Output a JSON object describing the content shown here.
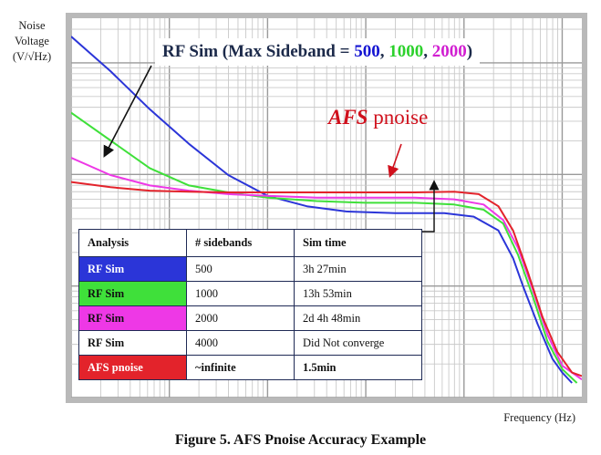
{
  "y_axis_lines": [
    "Noise",
    "Voltage",
    "(V/√Hz)"
  ],
  "x_axis_label": "Frequency (Hz)",
  "caption": "Figure 5. AFS Pnoise Accuracy Example",
  "title": {
    "prefix": "RF Sim (Max Sideband = ",
    "v1": "500",
    "sep1": ", ",
    "v2": "1000",
    "sep2": ", ",
    "v3": "2000",
    "suffix": ")"
  },
  "afs_label": {
    "italic": "AFS",
    "rest": " pnoise"
  },
  "colors": {
    "blue": "#2b35d8",
    "green": "#3fe03a",
    "magenta": "#ee38e6",
    "red": "#e3232b",
    "title_blue": "#1414d2",
    "title_green": "#2cd12c",
    "title_magenta": "#d11fd1"
  },
  "table": {
    "headers": [
      "Analysis",
      "# sidebands",
      "Sim time"
    ],
    "rows": [
      {
        "analysis": "RF Sim",
        "sidebands": "500",
        "time": "3h 27min",
        "color": "#2b35d8",
        "text_color": "#ffffff"
      },
      {
        "analysis": "RF Sim",
        "sidebands": "1000",
        "time": "13h 53min",
        "color": "#3fe03a",
        "text_color": "#111111"
      },
      {
        "analysis": "RF Sim",
        "sidebands": "2000",
        "time": "2d 4h 48min",
        "color": "#ee38e6",
        "text_color": "#111111"
      },
      {
        "analysis": "RF Sim",
        "sidebands": "4000",
        "time": "Did Not converge",
        "color": "#ffffff",
        "text_color": "#111111"
      },
      {
        "analysis": "AFS pnoise",
        "sidebands": "~infinite",
        "time": "1.5min",
        "color": "#e3232b",
        "text_color": "#ffffff"
      }
    ]
  },
  "chart_data": {
    "type": "line",
    "x_scale": "log",
    "y_scale": "log",
    "grid": true,
    "x_decades": 5.2,
    "series": [
      {
        "name": "500",
        "color": "#2b35d8",
        "points": [
          [
            0.0,
            1.0
          ],
          [
            0.4,
            0.9
          ],
          [
            0.8,
            0.79
          ],
          [
            1.2,
            0.69
          ],
          [
            1.6,
            0.6
          ],
          [
            2.0,
            0.54
          ],
          [
            2.4,
            0.51
          ],
          [
            2.8,
            0.495
          ],
          [
            3.3,
            0.49
          ],
          [
            3.8,
            0.49
          ],
          [
            4.1,
            0.48
          ],
          [
            4.35,
            0.44
          ],
          [
            4.5,
            0.36
          ],
          [
            4.6,
            0.28
          ],
          [
            4.75,
            0.17
          ],
          [
            4.9,
            0.07
          ],
          [
            5.0,
            0.03
          ],
          [
            5.1,
            0.0
          ]
        ]
      },
      {
        "name": "1000",
        "color": "#3fe03a",
        "points": [
          [
            0.0,
            0.78
          ],
          [
            0.4,
            0.7
          ],
          [
            0.8,
            0.62
          ],
          [
            1.2,
            0.57
          ],
          [
            1.6,
            0.55
          ],
          [
            2.0,
            0.535
          ],
          [
            2.5,
            0.525
          ],
          [
            3.0,
            0.52
          ],
          [
            3.5,
            0.52
          ],
          [
            3.9,
            0.515
          ],
          [
            4.2,
            0.5
          ],
          [
            4.4,
            0.46
          ],
          [
            4.55,
            0.37
          ],
          [
            4.7,
            0.25
          ],
          [
            4.85,
            0.12
          ],
          [
            5.0,
            0.04
          ],
          [
            5.15,
            0.0
          ]
        ]
      },
      {
        "name": "2000",
        "color": "#ee38e6",
        "points": [
          [
            0.0,
            0.65
          ],
          [
            0.4,
            0.6
          ],
          [
            0.8,
            0.57
          ],
          [
            1.2,
            0.555
          ],
          [
            1.6,
            0.545
          ],
          [
            2.0,
            0.54
          ],
          [
            2.5,
            0.535
          ],
          [
            3.0,
            0.535
          ],
          [
            3.5,
            0.535
          ],
          [
            3.9,
            0.53
          ],
          [
            4.2,
            0.515
          ],
          [
            4.4,
            0.47
          ],
          [
            4.55,
            0.39
          ],
          [
            4.7,
            0.27
          ],
          [
            4.85,
            0.14
          ],
          [
            5.0,
            0.05
          ],
          [
            5.2,
            0.01
          ]
        ]
      },
      {
        "name": "AFS pnoise",
        "color": "#e3232b",
        "points": [
          [
            0.0,
            0.58
          ],
          [
            0.4,
            0.565
          ],
          [
            0.8,
            0.555
          ],
          [
            1.2,
            0.552
          ],
          [
            1.6,
            0.55
          ],
          [
            2.0,
            0.55
          ],
          [
            2.5,
            0.55
          ],
          [
            3.0,
            0.55
          ],
          [
            3.5,
            0.55
          ],
          [
            3.9,
            0.552
          ],
          [
            4.15,
            0.545
          ],
          [
            4.35,
            0.51
          ],
          [
            4.5,
            0.44
          ],
          [
            4.65,
            0.32
          ],
          [
            4.8,
            0.19
          ],
          [
            4.95,
            0.09
          ],
          [
            5.1,
            0.03
          ],
          [
            5.2,
            0.02
          ]
        ]
      }
    ]
  }
}
